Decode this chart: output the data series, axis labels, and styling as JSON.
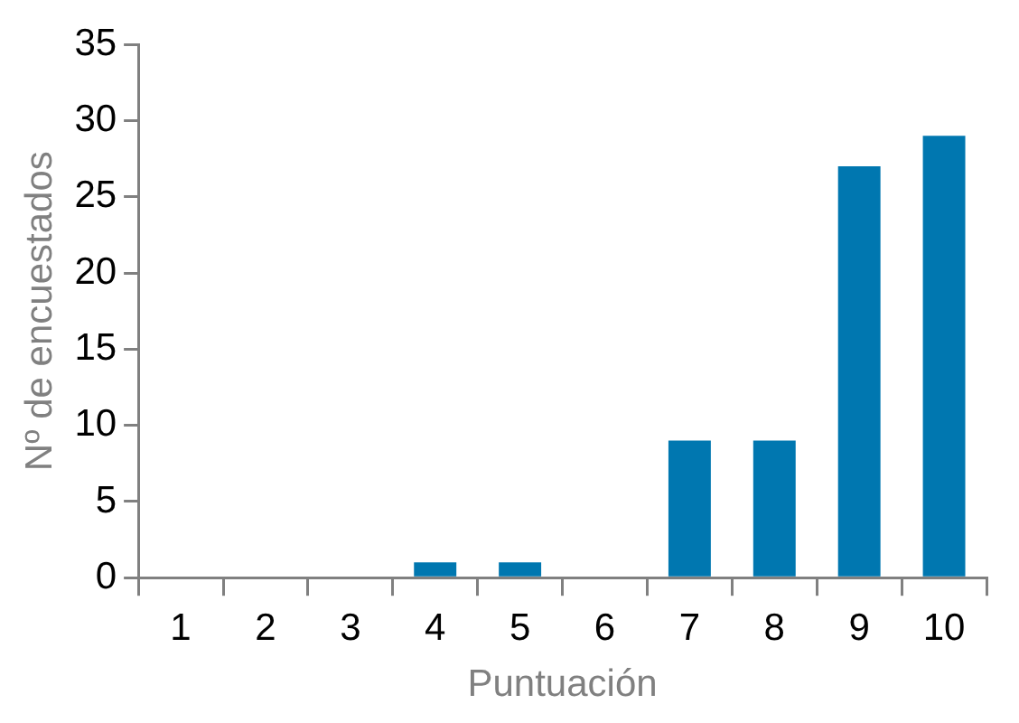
{
  "chart_data": {
    "type": "bar",
    "xlabel": "Puntuación",
    "ylabel": "Nº de encuestados",
    "categories": [
      "1",
      "2",
      "3",
      "4",
      "5",
      "6",
      "7",
      "8",
      "9",
      "10"
    ],
    "values": [
      0,
      0,
      0,
      1,
      1,
      0,
      9,
      9,
      27,
      29
    ],
    "color": "#0077b0",
    "ylim": [
      0,
      35
    ],
    "yticks": [
      0,
      5,
      10,
      15,
      20,
      25,
      30,
      35
    ],
    "grid": false,
    "legend": false
  }
}
